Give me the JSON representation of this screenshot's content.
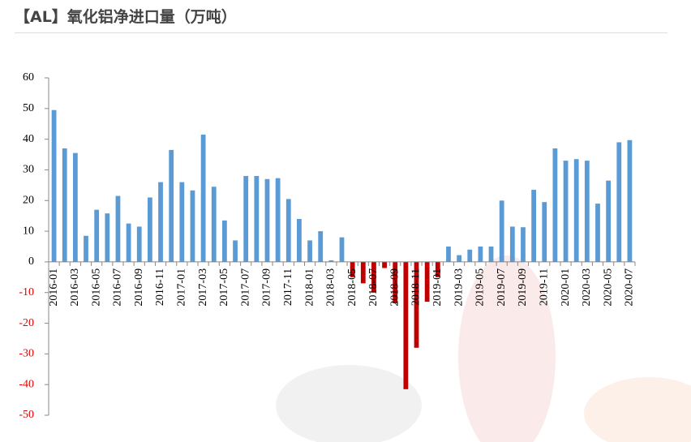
{
  "chart_data": {
    "type": "bar",
    "title": "【AL】氧化铝净进口量（万吨）",
    "categories": [
      "2016-01",
      null,
      "2016-03",
      null,
      "2016-05",
      null,
      "2016-07",
      null,
      "2016-09",
      null,
      "2016-11",
      null,
      "2017-01",
      null,
      "2017-03",
      null,
      "2017-05",
      null,
      "2017-07",
      null,
      "2017-09",
      null,
      "2017-11",
      null,
      "2018-01",
      null,
      "2018-03",
      null,
      "2018-05",
      null,
      "2018-07",
      null,
      "2018-09",
      null,
      "2018-11",
      null,
      "2019-01",
      null,
      "2019-03",
      null,
      "2019-05",
      null,
      "2019-07",
      null,
      "2019-09",
      null,
      "2019-11",
      null,
      "2020-01",
      null,
      "2020-03",
      null,
      "2020-05",
      null,
      "2020-07"
    ],
    "values": [
      49.5,
      37,
      35.5,
      8.5,
      17,
      15.8,
      21.5,
      12.5,
      11.5,
      21,
      26,
      36.5,
      26,
      23.3,
      41.5,
      24.5,
      13.5,
      7,
      28,
      28,
      27,
      27.3,
      20.5,
      14,
      7,
      10,
      0.5,
      8,
      -5,
      -7,
      -10,
      -2,
      -13.5,
      -41.5,
      -28,
      -13,
      -5,
      5,
      2.2,
      4,
      5,
      5,
      20,
      11.5,
      11.3,
      23.5,
      19.5,
      37,
      33,
      33.5,
      33,
      19,
      26.5,
      39,
      39.7
    ],
    "color": "#5b9bd5",
    "negative_color": "#c00000",
    "ylim": [
      -50,
      60
    ],
    "yticks": [
      -50,
      -40,
      -30,
      -20,
      -10,
      0,
      10,
      20,
      30,
      40,
      50,
      60
    ]
  }
}
